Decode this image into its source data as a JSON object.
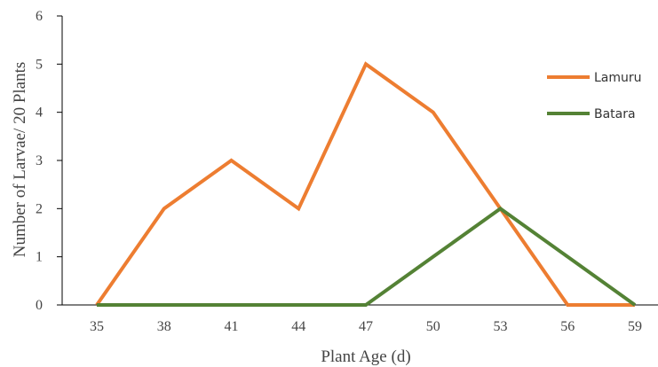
{
  "chart_data": {
    "type": "line",
    "title": "",
    "xlabel": "Plant Age (d)",
    "ylabel": "Number of Larvae/ 20 Plants",
    "categories": [
      "35",
      "38",
      "41",
      "44",
      "47",
      "50",
      "53",
      "56",
      "59"
    ],
    "ylim": [
      0,
      6
    ],
    "yticks": [
      "0",
      "1",
      "2",
      "3",
      "4",
      "5",
      "6"
    ],
    "grid": false,
    "legend_position": "right",
    "series": [
      {
        "name": "Lamuru",
        "color": "#ED7D31",
        "values": [
          0,
          2,
          3,
          2,
          5,
          4,
          2,
          0,
          0
        ]
      },
      {
        "name": "Batara",
        "color": "#548235",
        "values": [
          0,
          0,
          0,
          0,
          0,
          1,
          2,
          1,
          0
        ]
      }
    ]
  }
}
